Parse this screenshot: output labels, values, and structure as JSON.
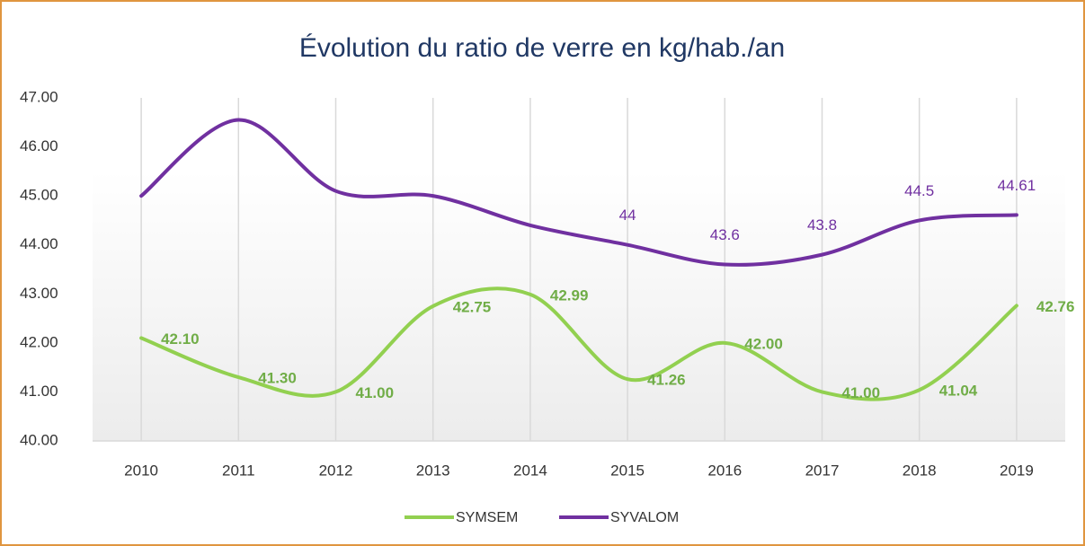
{
  "chart_data": {
    "type": "line",
    "title": "Évolution du ratio de verre en kg/hab./an",
    "categories": [
      "2010",
      "2011",
      "2012",
      "2013",
      "2014",
      "2015",
      "2016",
      "2017",
      "2018",
      "2019"
    ],
    "series": [
      {
        "name": "SYMSEM",
        "color": "#92d050",
        "values": [
          42.1,
          41.3,
          41.0,
          42.75,
          42.99,
          41.26,
          42.0,
          41.0,
          41.04,
          42.76
        ],
        "value_labels": [
          "42.10",
          "41.30",
          "41.00",
          "42.75",
          "42.99",
          "41.26",
          "42.00",
          "41.00",
          "41.04",
          "42.76"
        ]
      },
      {
        "name": "SYVALOM",
        "color": "#7030a0",
        "values": [
          45.0,
          46.55,
          45.1,
          45.0,
          44.4,
          44,
          43.6,
          43.8,
          44.5,
          44.61
        ],
        "value_labels": [
          null,
          null,
          null,
          null,
          null,
          "44",
          "43.6",
          "43.8",
          "44.5",
          "44.61"
        ]
      }
    ],
    "ylim": [
      40,
      47
    ],
    "yticks": [
      {
        "value": 40,
        "label": "40.00"
      },
      {
        "value": 41,
        "label": "41.00"
      },
      {
        "value": 42,
        "label": "42.00"
      },
      {
        "value": 43,
        "label": "43.00"
      },
      {
        "value": 44,
        "label": "44.00"
      },
      {
        "value": 45,
        "label": "45.00"
      },
      {
        "value": 46,
        "label": "46.00"
      },
      {
        "value": 47,
        "label": "47.00"
      }
    ],
    "grid": "x",
    "smooth": true,
    "legend": "bottom"
  }
}
